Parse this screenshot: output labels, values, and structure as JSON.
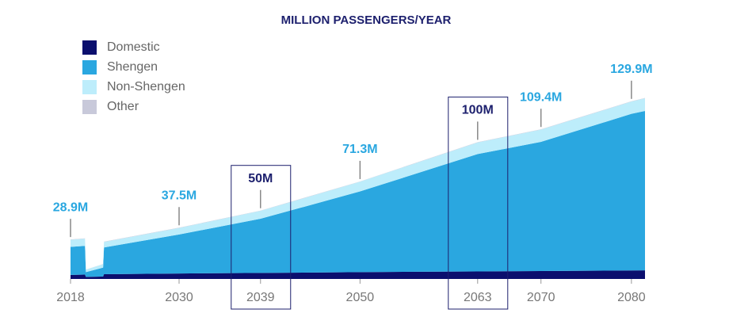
{
  "chart_data": {
    "type": "stacked_area",
    "title": "MILLION PASSENGERS/YEAR",
    "x": [
      2018,
      2019.6,
      2019.7,
      2021.6,
      2021.7,
      2030,
      2039,
      2050,
      2063,
      2070,
      2080,
      2081.5
    ],
    "series": [
      {
        "name": "Domestic",
        "color": "#0b0f6e",
        "values": [
          3,
          3.2,
          1.5,
          1.8,
          3.5,
          4,
          4.4,
          5,
          5.5,
          5.8,
          6.2,
          6.3
        ]
      },
      {
        "name": "Shengen",
        "color": "#2aa7e0",
        "values": [
          20.5,
          21,
          3.5,
          6.5,
          19.5,
          28.5,
          39.6,
          59,
          85.8,
          94.4,
          114.5,
          116.5
        ]
      },
      {
        "name": "Non-Shengen",
        "color": "#bdedfb",
        "values": [
          5.2,
          5.3,
          1.8,
          2.5,
          4.1,
          4.8,
          5.8,
          7.1,
          8.5,
          9,
          9,
          9.3
        ]
      },
      {
        "name": "Other",
        "color": "#c8c9da",
        "values": [
          0.2,
          0.2,
          0.1,
          0.1,
          0.2,
          0.2,
          0.2,
          0.2,
          0.2,
          0.2,
          0.2,
          0.2
        ]
      }
    ],
    "annotations": [
      {
        "x": 2018,
        "value": 28.9,
        "label": "28.9M",
        "highlight": false
      },
      {
        "x": 2030,
        "value": 37.5,
        "label": "37.5M",
        "highlight": false
      },
      {
        "x": 2039,
        "value": 50,
        "label": "50M",
        "highlight": true
      },
      {
        "x": 2050,
        "value": 71.3,
        "label": "71.3M",
        "highlight": false
      },
      {
        "x": 2063,
        "value": 100,
        "label": "100M",
        "highlight": true
      },
      {
        "x": 2070,
        "value": 109.4,
        "label": "109.4M",
        "highlight": false
      },
      {
        "x": 2080,
        "value": 129.9,
        "label": "129.9M",
        "highlight": false
      }
    ],
    "xlim": [
      2018,
      2081.5
    ],
    "xticks": [
      2018,
      2030,
      2039,
      2050,
      2063,
      2070,
      2080
    ],
    "ylim": [
      0,
      135
    ],
    "legend": "top-left"
  }
}
